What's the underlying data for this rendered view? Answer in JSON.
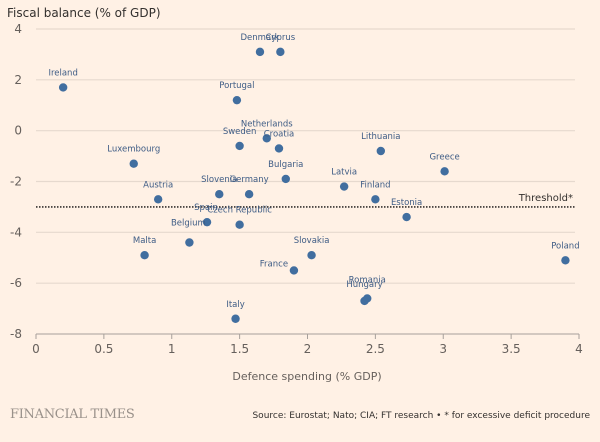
{
  "chart_data": {
    "type": "scatter",
    "title": "",
    "ylabel": "Fiscal balance (% of GDP)",
    "xlabel": "Defence spending (% GDP)",
    "xlim": [
      0,
      4
    ],
    "ylim": [
      -8,
      4
    ],
    "xticks": [
      0,
      0.5,
      1,
      1.5,
      2,
      2.5,
      3,
      3.5,
      4
    ],
    "xtick_labels": [
      "0",
      "0.5",
      "1",
      "1.5",
      "2",
      "2.5",
      "3",
      "3.5",
      "4"
    ],
    "yticks": [
      4,
      2,
      0,
      -2,
      -4,
      -6,
      -8
    ],
    "ytick_labels": [
      "4",
      "2",
      "0",
      "-2",
      "-4",
      "-6",
      "-8"
    ],
    "grid": "horizontal",
    "reference_line": {
      "y": -3,
      "label": "Threshold*",
      "style": "dotted"
    },
    "point_color": "#416e9f",
    "points": [
      {
        "label": "Ireland",
        "x": 0.2,
        "y": 1.7
      },
      {
        "label": "Denmark",
        "x": 1.65,
        "y": 3.1
      },
      {
        "label": "Cyprus",
        "x": 1.8,
        "y": 3.1
      },
      {
        "label": "Portugal",
        "x": 1.48,
        "y": 1.2
      },
      {
        "label": "Netherlands",
        "x": 1.7,
        "y": -0.3
      },
      {
        "label": "Sweden",
        "x": 1.5,
        "y": -0.6
      },
      {
        "label": "Croatia",
        "x": 1.79,
        "y": -0.7
      },
      {
        "label": "Lithuania",
        "x": 2.54,
        "y": -0.8
      },
      {
        "label": "Luxembourg",
        "x": 0.72,
        "y": -1.3
      },
      {
        "label": "Greece",
        "x": 3.01,
        "y": -1.6
      },
      {
        "label": "Bulgaria",
        "x": 1.84,
        "y": -1.9
      },
      {
        "label": "Latvia",
        "x": 2.27,
        "y": -2.2
      },
      {
        "label": "Slovenia",
        "x": 1.35,
        "y": -2.5
      },
      {
        "label": "Germany",
        "x": 1.57,
        "y": -2.5
      },
      {
        "label": "Austria",
        "x": 0.9,
        "y": -2.7
      },
      {
        "label": "Finland",
        "x": 2.5,
        "y": -2.7
      },
      {
        "label": "Estonia",
        "x": 2.73,
        "y": -3.4
      },
      {
        "label": "Spain",
        "x": 1.26,
        "y": -3.6
      },
      {
        "label": "Czech Republic",
        "x": 1.5,
        "y": -3.7
      },
      {
        "label": "Belgium",
        "x": 1.13,
        "y": -4.4
      },
      {
        "label": "Malta",
        "x": 0.8,
        "y": -4.9
      },
      {
        "label": "Slovakia",
        "x": 2.03,
        "y": -4.9
      },
      {
        "label": "France",
        "x": 1.9,
        "y": -5.5
      },
      {
        "label": "Poland",
        "x": 3.9,
        "y": -5.1
      },
      {
        "label": "Romania",
        "x": 2.44,
        "y": -6.6
      },
      {
        "label": "Hungary",
        "x": 2.42,
        "y": -6.7
      },
      {
        "label": "Italy",
        "x": 1.47,
        "y": -7.4
      }
    ]
  },
  "footer": {
    "brand": "FINANCIAL TIMES",
    "source": "Source: Eurostat; Nato; CIA; FT research • * for excessive deficit procedure"
  }
}
